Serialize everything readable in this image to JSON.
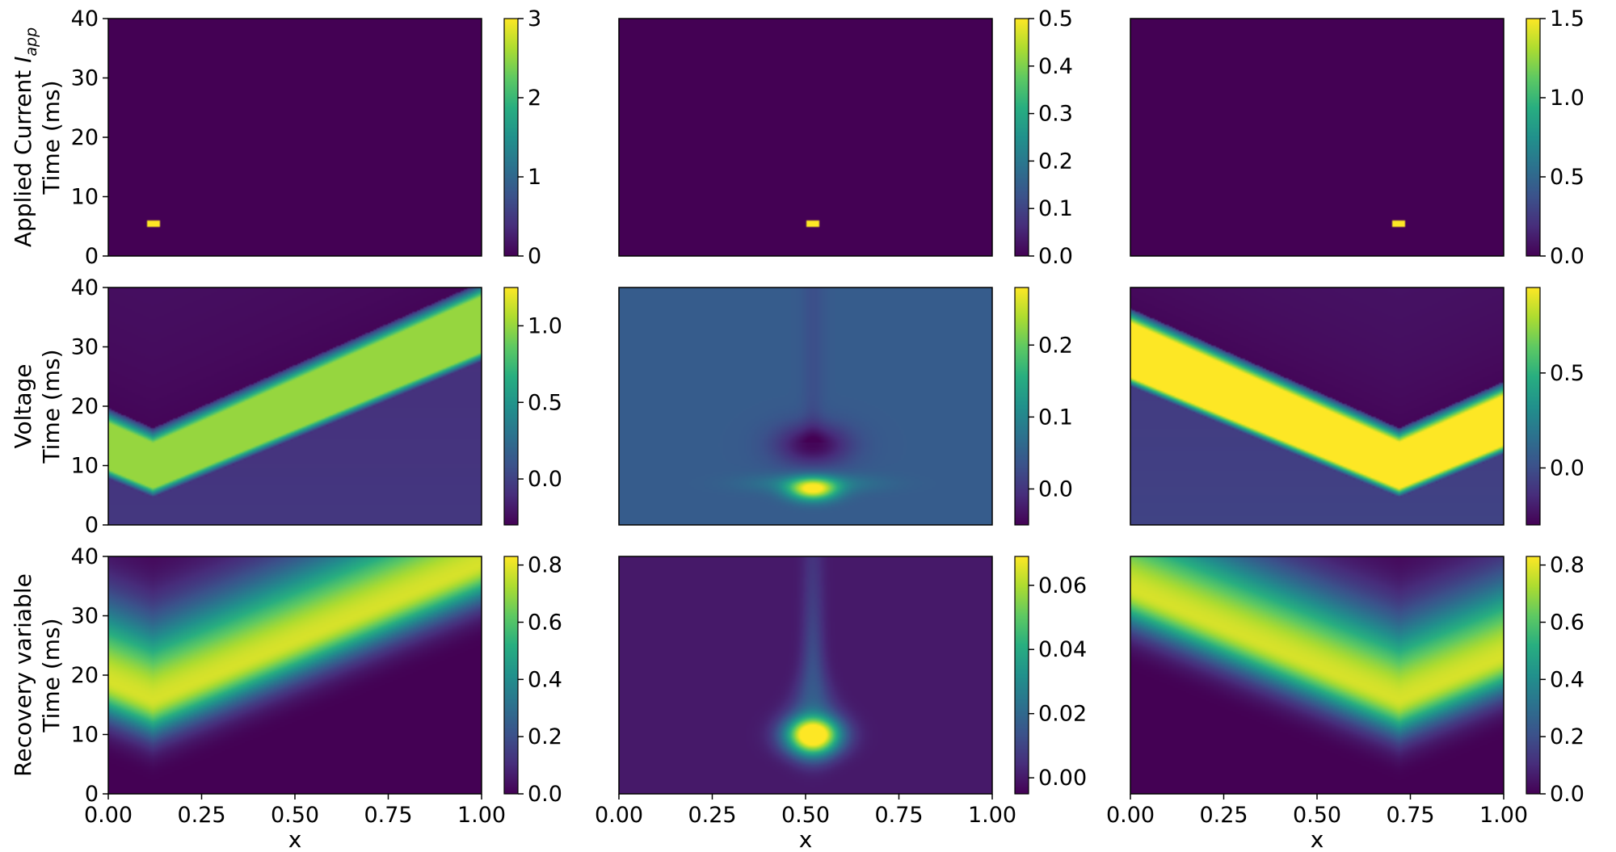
{
  "chart_data": {
    "type": "heatmap",
    "colormap": "viridis",
    "colormap_stops": [
      "#440154",
      "#472d7b",
      "#3b528b",
      "#2c728e",
      "#21918c",
      "#28ae80",
      "#5ec962",
      "#addc30",
      "#fde725"
    ],
    "x_ticks": [
      "0.00",
      "0.25",
      "0.50",
      "0.75",
      "1.00"
    ],
    "y_ticks": [
      "0",
      "10",
      "20",
      "30",
      "40"
    ],
    "xlim": [
      0,
      1
    ],
    "ylim": [
      0,
      40
    ],
    "xlabel": "x",
    "ylabel": "Time (ms)",
    "row_labels": [
      {
        "main": "Applied Current ",
        "italic": "I",
        "sub": "app"
      },
      {
        "main": "Voltage"
      },
      {
        "main": "Recovery variable"
      }
    ],
    "columns": [
      {
        "stimulus_x": 0.12,
        "stimulus_t": 5.5
      },
      {
        "stimulus_x": 0.52,
        "stimulus_t": 5.5
      },
      {
        "stimulus_x": 0.72,
        "stimulus_t": 5.5
      }
    ],
    "panels": [
      {
        "row": 0,
        "col": 0,
        "kind": "applied",
        "vmin": 0,
        "vmax": 3,
        "cbar_ticks": [
          {
            "v": 0,
            "label": "0"
          },
          {
            "v": 1,
            "label": "1"
          },
          {
            "v": 2,
            "label": "2"
          },
          {
            "v": 3,
            "label": "3"
          }
        ]
      },
      {
        "row": 0,
        "col": 1,
        "kind": "applied",
        "vmin": 0,
        "vmax": 0.5,
        "cbar_ticks": [
          {
            "v": 0,
            "label": "0.0"
          },
          {
            "v": 0.1,
            "label": "0.1"
          },
          {
            "v": 0.2,
            "label": "0.2"
          },
          {
            "v": 0.3,
            "label": "0.3"
          },
          {
            "v": 0.4,
            "label": "0.4"
          },
          {
            "v": 0.5,
            "label": "0.5"
          }
        ]
      },
      {
        "row": 0,
        "col": 2,
        "kind": "applied",
        "vmin": 0,
        "vmax": 1.5,
        "cbar_ticks": [
          {
            "v": 0,
            "label": "0.0"
          },
          {
            "v": 0.5,
            "label": "0.5"
          },
          {
            "v": 1.0,
            "label": "1.0"
          },
          {
            "v": 1.5,
            "label": "1.5"
          }
        ]
      },
      {
        "row": 1,
        "col": 0,
        "kind": "voltage_wave",
        "vmin": -0.3,
        "vmax": 1.25,
        "cbar_ticks": [
          {
            "v": 0,
            "label": "0.0"
          },
          {
            "v": 0.5,
            "label": "0.5"
          },
          {
            "v": 1.0,
            "label": "1.0"
          }
        ]
      },
      {
        "row": 1,
        "col": 1,
        "kind": "voltage_local",
        "vmin": -0.05,
        "vmax": 0.28,
        "cbar_ticks": [
          {
            "v": 0,
            "label": "0.0"
          },
          {
            "v": 0.1,
            "label": "0.1"
          },
          {
            "v": 0.2,
            "label": "0.2"
          }
        ]
      },
      {
        "row": 1,
        "col": 2,
        "kind": "voltage_wave",
        "vmin": -0.3,
        "vmax": 0.95,
        "cbar_ticks": [
          {
            "v": 0,
            "label": "0.0"
          },
          {
            "v": 0.5,
            "label": "0.5"
          }
        ]
      },
      {
        "row": 2,
        "col": 0,
        "kind": "recovery_wave",
        "vmin": 0,
        "vmax": 0.83,
        "cbar_ticks": [
          {
            "v": 0,
            "label": "0.0"
          },
          {
            "v": 0.2,
            "label": "0.2"
          },
          {
            "v": 0.4,
            "label": "0.4"
          },
          {
            "v": 0.6,
            "label": "0.6"
          },
          {
            "v": 0.8,
            "label": "0.8"
          }
        ]
      },
      {
        "row": 2,
        "col": 1,
        "kind": "recovery_local",
        "vmin": -0.005,
        "vmax": 0.069,
        "cbar_ticks": [
          {
            "v": 0,
            "label": "0.00"
          },
          {
            "v": 0.02,
            "label": "0.02"
          },
          {
            "v": 0.04,
            "label": "0.04"
          },
          {
            "v": 0.06,
            "label": "0.06"
          }
        ]
      },
      {
        "row": 2,
        "col": 2,
        "kind": "recovery_wave",
        "vmin": 0,
        "vmax": 0.83,
        "cbar_ticks": [
          {
            "v": 0,
            "label": "0.0"
          },
          {
            "v": 0.2,
            "label": "0.2"
          },
          {
            "v": 0.4,
            "label": "0.4"
          },
          {
            "v": 0.6,
            "label": "0.6"
          },
          {
            "v": 0.8,
            "label": "0.8"
          }
        ]
      }
    ]
  }
}
